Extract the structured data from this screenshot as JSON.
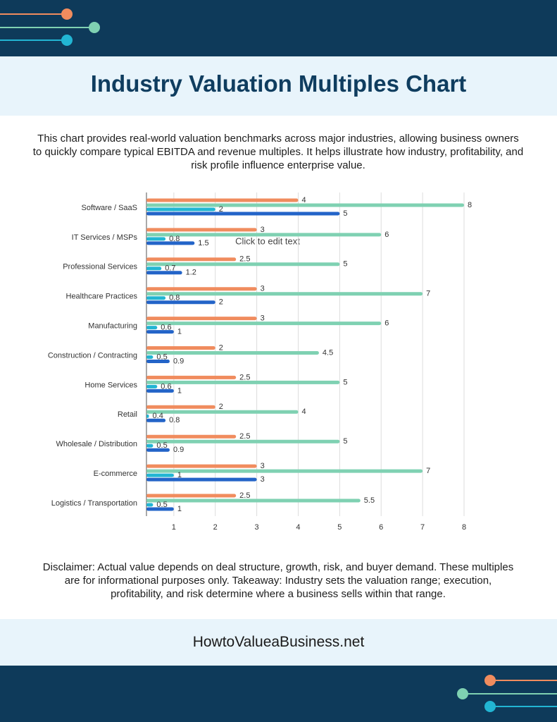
{
  "header": {
    "title": "Industry Valuation Multiples Chart"
  },
  "description": "This chart provides real-world valuation benchmarks across major industries, allowing business owners to quickly compare typical EBITDA and revenue multiples. It helps illustrate how industry, profitability, and risk profile influence enterprise value.",
  "chart_data": {
    "type": "bar",
    "orientation": "horizontal",
    "annotation": "Click to edit text",
    "categories": [
      "Software / SaaS",
      "IT Services / MSPs",
      "Professional Services",
      "Healthcare Practices",
      "Manufacturing",
      "Construction / Contracting",
      "Home Services",
      "Retail",
      "Wholesale / Distribution",
      "E-commerce",
      "Logistics / Transportation"
    ],
    "series": [
      {
        "color": "#f08c5e",
        "values": [
          4,
          3,
          2.5,
          3,
          3,
          2,
          2.5,
          2,
          2.5,
          3,
          2.5
        ]
      },
      {
        "color": "#7fd1b2",
        "values": [
          8,
          6,
          5,
          7,
          6,
          4.5,
          5,
          4,
          5,
          7,
          5.5
        ]
      },
      {
        "color": "#22b5d3",
        "values": [
          2,
          0.8,
          0.7,
          0.8,
          0.6,
          0.5,
          0.6,
          0.4,
          0.5,
          1,
          0.5
        ]
      },
      {
        "color": "#2364c8",
        "values": [
          5,
          1.5,
          1.2,
          2,
          1,
          0.9,
          1,
          0.8,
          0.9,
          3,
          1
        ]
      }
    ],
    "xlim": [
      0.34,
      8
    ],
    "xticks": [
      1,
      2,
      3,
      4,
      5,
      6,
      7,
      8
    ],
    "grid": true
  },
  "disclaimer": "Disclaimer: Actual value depends on deal structure, growth, risk, and buyer demand. These multiples are for informational purposes only. Takeaway: Industry sets the valuation range; execution, profitability, and risk determine where a business sells within that range.",
  "footer": {
    "site": "HowtoValueaBusiness.net"
  }
}
